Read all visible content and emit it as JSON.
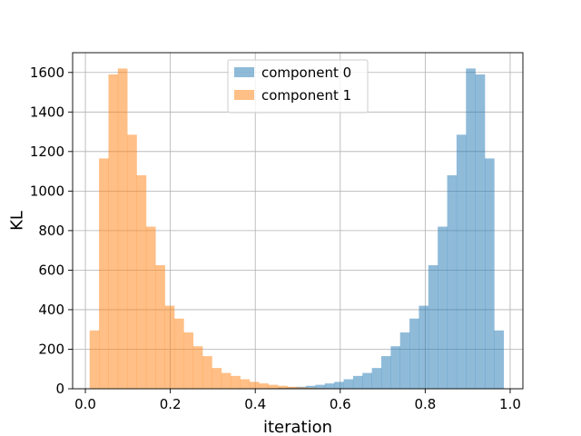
{
  "chart_data": {
    "type": "bar",
    "xlabel": "iteration",
    "ylabel": "KL",
    "xlim": [
      -0.03,
      1.03
    ],
    "ylim": [
      0,
      1700
    ],
    "xticks": [
      0.0,
      0.2,
      0.4,
      0.6,
      0.8,
      1.0
    ],
    "xtick_labels": [
      "0.0",
      "0.2",
      "0.4",
      "0.6",
      "0.8",
      "1.0"
    ],
    "yticks": [
      0,
      200,
      400,
      600,
      800,
      1000,
      1200,
      1400,
      1600
    ],
    "ytick_labels": [
      "0",
      "200",
      "400",
      "600",
      "800",
      "1000",
      "1200",
      "1400",
      "1600"
    ],
    "grid": true,
    "legend_position": "top-center",
    "bin_edges": [
      0.01,
      0.0321,
      0.0543,
      0.0764,
      0.0986,
      0.1207,
      0.1429,
      0.165,
      0.1872,
      0.2093,
      0.2315,
      0.2536,
      0.2758,
      0.2979,
      0.3201,
      0.3422,
      0.3644,
      0.3865,
      0.4087,
      0.4308,
      0.453,
      0.4751,
      0.4973,
      0.5194,
      0.5416,
      0.5637,
      0.5859,
      0.608,
      0.6302,
      0.6523,
      0.6745,
      0.6966,
      0.7188,
      0.7409,
      0.7631,
      0.7852,
      0.8074,
      0.8295,
      0.8517,
      0.8738,
      0.896,
      0.9181,
      0.9403,
      0.9624,
      0.9846
    ],
    "series": [
      {
        "name": "component 0",
        "color": "#1f77b4",
        "opacity": 0.5,
        "values": [
          0,
          0,
          0,
          0,
          0,
          0,
          0,
          0,
          0,
          0,
          0,
          0,
          0,
          0,
          0,
          0,
          1,
          1,
          2,
          3,
          5,
          7,
          10,
          15,
          20,
          27,
          35,
          48,
          65,
          80,
          105,
          165,
          215,
          285,
          355,
          420,
          625,
          820,
          1080,
          1285,
          1620,
          1590,
          1165,
          295
        ]
      },
      {
        "name": "component 1",
        "color": "#ff7f0e",
        "opacity": 0.5,
        "values": [
          295,
          1165,
          1590,
          1620,
          1285,
          1080,
          820,
          625,
          420,
          355,
          285,
          215,
          165,
          105,
          80,
          65,
          48,
          35,
          27,
          20,
          15,
          10,
          7,
          5,
          3,
          2,
          1,
          1,
          0,
          0,
          0,
          0,
          0,
          0,
          0,
          0,
          0,
          0,
          0,
          0,
          0,
          0,
          0,
          0
        ]
      }
    ]
  }
}
